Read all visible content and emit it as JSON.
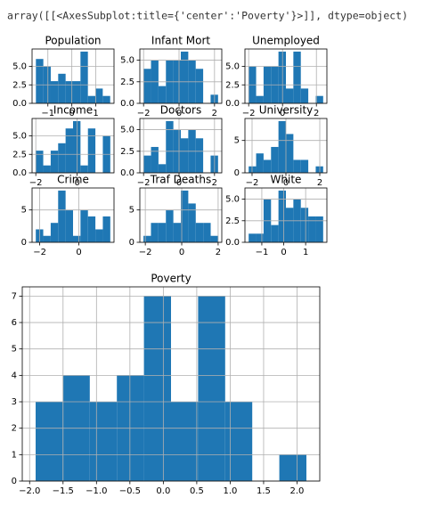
{
  "output_text": "array([[<AxesSubplot:title={'center':'Poverty'}>]], dtype=object)",
  "chart_data": [
    {
      "type": "histogram",
      "title": "Population",
      "color": "#1f77b4",
      "grid": true,
      "bins": [
        -1.5,
        -1.19,
        -0.88,
        -0.57,
        -0.26,
        0.05,
        0.36,
        0.67,
        0.98,
        1.29,
        1.6
      ],
      "values": [
        6,
        5,
        3,
        4,
        3,
        3,
        7,
        1,
        2,
        1
      ],
      "xlim": [
        -1.66,
        1.76
      ],
      "ylim": [
        0,
        7.35
      ],
      "xticks": [
        {
          "value": -1,
          "label": "−1"
        },
        0,
        1
      ],
      "yticks": [
        {
          "value": 0,
          "label": "0.0"
        },
        2.5,
        {
          "value": 5,
          "label": "5.0"
        }
      ]
    },
    {
      "type": "histogram",
      "title": "Infant Mort",
      "color": "#1f77b4",
      "grid": true,
      "bins": [
        -2,
        -1.58,
        -1.16,
        -0.74,
        -0.32,
        0.1,
        0.52,
        0.94,
        1.36,
        1.78,
        2.2
      ],
      "values": [
        4,
        5,
        2,
        5,
        5,
        6,
        5,
        4,
        0,
        1
      ],
      "xlim": [
        -2.21,
        2.41
      ],
      "ylim": [
        0,
        6.3
      ],
      "xticks": [
        {
          "value": -2,
          "label": "−2"
        },
        0,
        2
      ],
      "yticks": [
        {
          "value": 0,
          "label": "0.0"
        },
        2.5,
        {
          "value": 5,
          "label": "5.0"
        }
      ]
    },
    {
      "type": "histogram",
      "title": "Unemployed",
      "color": "#1f77b4",
      "grid": true,
      "bins": [
        -2,
        -1.56,
        -1.12,
        -0.68,
        -0.24,
        0.2,
        0.64,
        1.08,
        1.52,
        1.96,
        2.4
      ],
      "values": [
        5,
        1,
        5,
        5,
        7,
        2,
        7,
        2,
        0,
        1
      ],
      "xlim": [
        -2.22,
        2.62
      ],
      "ylim": [
        0,
        7.35
      ],
      "xticks": [
        {
          "value": -2,
          "label": "−2"
        },
        0,
        2
      ],
      "yticks": [
        {
          "value": 0,
          "label": "0.0"
        },
        2.5,
        {
          "value": 5,
          "label": "5.0"
        }
      ]
    },
    {
      "type": "histogram",
      "title": "Income",
      "color": "#1f77b4",
      "grid": true,
      "bins": [
        -2,
        -1.64,
        -1.28,
        -0.92,
        -0.56,
        -0.2,
        0.16,
        0.52,
        0.88,
        1.24,
        1.6
      ],
      "values": [
        3,
        1,
        3,
        4,
        6,
        7,
        1,
        6,
        0,
        5
      ],
      "xlim": [
        -2.18,
        1.78
      ],
      "ylim": [
        0,
        7.35
      ],
      "xticks": [
        {
          "value": -2,
          "label": "−2"
        },
        0
      ],
      "yticks": [
        {
          "value": 0,
          "label": "0.0"
        },
        2.5,
        {
          "value": 5,
          "label": "5.0"
        }
      ]
    },
    {
      "type": "histogram",
      "title": "Doctors",
      "color": "#1f77b4",
      "grid": true,
      "bins": [
        -2,
        -1.58,
        -1.16,
        -0.74,
        -0.32,
        0.1,
        0.52,
        0.94,
        1.36,
        1.78,
        2.2
      ],
      "values": [
        2,
        3,
        1,
        6,
        5,
        4,
        5,
        4,
        0,
        2
      ],
      "xlim": [
        -2.21,
        2.41
      ],
      "ylim": [
        0,
        6.3
      ],
      "xticks": [
        {
          "value": -2,
          "label": "−2"
        },
        0,
        2
      ],
      "yticks": [
        {
          "value": 0,
          "label": "0.0"
        },
        2.5,
        {
          "value": 5,
          "label": "5.0"
        }
      ]
    },
    {
      "type": "histogram",
      "title": "University",
      "color": "#1f77b4",
      "grid": true,
      "bins": [
        -2.2,
        -1.76,
        -1.32,
        -0.88,
        -0.44,
        0,
        0.44,
        0.88,
        1.32,
        1.76,
        2.2
      ],
      "values": [
        1,
        3,
        2,
        4,
        8,
        6,
        2,
        2,
        0,
        1
      ],
      "xlim": [
        -2.42,
        2.42
      ],
      "ylim": [
        0,
        8.4
      ],
      "xticks": [
        {
          "value": -2,
          "label": "−2"
        },
        0,
        2
      ],
      "yticks": [
        0,
        5
      ]
    },
    {
      "type": "histogram",
      "title": "Crime",
      "color": "#1f77b4",
      "grid": true,
      "bins": [
        -2.2,
        -1.82,
        -1.44,
        -1.06,
        -0.68,
        -0.3,
        0.08,
        0.46,
        0.84,
        1.22,
        1.6
      ],
      "values": [
        2,
        1,
        3,
        8,
        5,
        1,
        5,
        4,
        2,
        4
      ],
      "xlim": [
        -2.39,
        1.79
      ],
      "ylim": [
        0,
        8.4
      ],
      "xticks": [
        {
          "value": -2,
          "label": "−2"
        },
        0
      ],
      "yticks": [
        0,
        5
      ]
    },
    {
      "type": "histogram",
      "title": "Traf Deaths",
      "color": "#1f77b4",
      "grid": true,
      "bins": [
        -2.1,
        -1.69,
        -1.28,
        -0.87,
        -0.46,
        -0.05,
        0.36,
        0.77,
        1.18,
        1.59,
        2.0
      ],
      "values": [
        1,
        3,
        3,
        5,
        3,
        8,
        6,
        3,
        3,
        1
      ],
      "xlim": [
        -2.3,
        2.2
      ],
      "ylim": [
        0,
        8.4
      ],
      "xticks": [
        {
          "value": -2,
          "label": "−2"
        },
        0,
        2
      ],
      "yticks": [
        0,
        5
      ]
    },
    {
      "type": "histogram",
      "title": "White",
      "color": "#1f77b4",
      "grid": true,
      "bins": [
        -1.6,
        -1.26,
        -0.92,
        -0.58,
        -0.24,
        0.1,
        0.44,
        0.78,
        1.12,
        1.46,
        1.8
      ],
      "values": [
        1,
        1,
        5,
        2,
        6,
        4,
        5,
        4,
        3,
        3
      ],
      "xlim": [
        -1.77,
        1.97
      ],
      "ylim": [
        0,
        6.3
      ],
      "xticks": [
        {
          "value": -1,
          "label": "−1"
        },
        0,
        1
      ],
      "yticks": [
        {
          "value": 0,
          "label": "0.0"
        },
        2.5,
        {
          "value": 5,
          "label": "5.0"
        }
      ]
    },
    {
      "type": "histogram",
      "title": "Poverty",
      "color": "#1f77b4",
      "grid": true,
      "bins": [
        -1.91,
        -1.505,
        -1.1,
        -0.695,
        -0.29,
        0.115,
        0.52,
        0.925,
        1.33,
        1.735,
        2.14
      ],
      "values": [
        3,
        4,
        3,
        4,
        7,
        3,
        7,
        3,
        0,
        1
      ],
      "xlim": [
        -2.11,
        2.34
      ],
      "ylim": [
        0,
        7.35
      ],
      "xticks": [
        {
          "value": -2,
          "label": "−2.0"
        },
        {
          "value": -1.5,
          "label": "−1.5"
        },
        {
          "value": -1,
          "label": "−1.0"
        },
        {
          "value": -0.5,
          "label": "−0.5"
        },
        {
          "value": 0,
          "label": "0.0"
        },
        0.5,
        {
          "value": 1,
          "label": "1.0"
        },
        1.5,
        {
          "value": 2,
          "label": "2.0"
        }
      ],
      "yticks": [
        0,
        1,
        2,
        3,
        4,
        5,
        6,
        7
      ]
    }
  ]
}
